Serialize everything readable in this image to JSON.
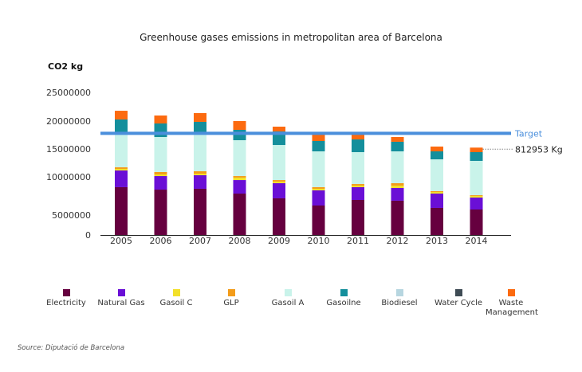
{
  "chart_data": {
    "type": "bar",
    "stacked": true,
    "title": "Greenhouse gases emissions in metropolitan area of Barcelona",
    "xlabel": "",
    "ylabel": "CO2 kg",
    "ylim": [
      0,
      25000000
    ],
    "yticks": [
      0,
      5000000,
      10000000,
      15000000,
      20000000,
      25000000
    ],
    "ytick_labels": [
      "0",
      "5000000",
      "10000000",
      "15000000",
      "20000000",
      "25000000"
    ],
    "grid": false,
    "legend_position": "bottom",
    "categories": [
      "2005",
      "2006",
      "2007",
      "2008",
      "2009",
      "2010",
      "2011",
      "2012",
      "2013",
      "2014"
    ],
    "series": [
      {
        "name": "Electricity",
        "color": "#66003f",
        "values": [
          8650000,
          8330000,
          8440000,
          7810000,
          7190000,
          6250000,
          6980000,
          6880000,
          5940000,
          5730000
        ]
      },
      {
        "name": "Natural Gas",
        "color": "#6a0fd6",
        "values": [
          2490000,
          1810000,
          1850000,
          1770000,
          1980000,
          1980000,
          1670000,
          1660000,
          1870000,
          1560000
        ]
      },
      {
        "name": "Gasoil C",
        "color": "#f2e02a",
        "values": [
          290000,
          290000,
          280000,
          320000,
          210000,
          210000,
          200000,
          310000,
          210000,
          210000
        ]
      },
      {
        "name": "GLP",
        "color": "#f39c1a",
        "values": [
          280000,
          430000,
          430000,
          240000,
          200000,
          210000,
          210000,
          320000,
          110000,
          100000
        ]
      },
      {
        "name": "Gasoil A",
        "color": "#c9f3ea",
        "values": [
          6290000,
          6280000,
          6710000,
          6430000,
          6130000,
          5920000,
          5370000,
          5400000,
          5010000,
          5260000
        ]
      },
      {
        "name": "Gasoilne",
        "color": "#148f9c",
        "values": [
          2280000,
          2430000,
          2150000,
          1860000,
          2430000,
          1860000,
          2280000,
          1720000,
          1430000,
          1570000
        ]
      },
      {
        "name": "Biodiesel",
        "color": "#b7d6e0",
        "values": [
          0,
          0,
          0,
          0,
          0,
          0,
          0,
          0,
          0,
          0
        ]
      },
      {
        "name": "Water Cycle",
        "color": "#3f4c55",
        "values": [
          0,
          0,
          0,
          0,
          0,
          0,
          0,
          0,
          0,
          0
        ]
      },
      {
        "name": "Waste Management",
        "color": "#fc6a0f",
        "values": [
          1520000,
          1400000,
          1530000,
          1570000,
          860000,
          1280000,
          1000000,
          850000,
          860000,
          812953
        ]
      }
    ],
    "annotations": [
      {
        "type": "hline",
        "label": "Target",
        "value": 17800000,
        "color": "#4a8fdc"
      },
      {
        "type": "point-label",
        "label": "812953 Kg",
        "category": "2014",
        "series": "Waste Management"
      }
    ]
  },
  "legend": {
    "items": [
      {
        "label": "Electricity",
        "color": "#66003f"
      },
      {
        "label": "Natural Gas",
        "color": "#6a0fd6"
      },
      {
        "label": "Gasoil C",
        "color": "#f2e02a"
      },
      {
        "label": "GLP",
        "color": "#f39c1a"
      },
      {
        "label": "Gasoil A",
        "color": "#c9f3ea"
      },
      {
        "label": "Gasoilne",
        "color": "#148f9c"
      },
      {
        "label": "Biodiesel",
        "color": "#b7d6e0"
      },
      {
        "label": "Water Cycle",
        "color": "#3f4c55"
      },
      {
        "label": "Waste Management",
        "color": "#fc6a0f"
      }
    ]
  },
  "source": "Source: Diputació de Barcelona"
}
